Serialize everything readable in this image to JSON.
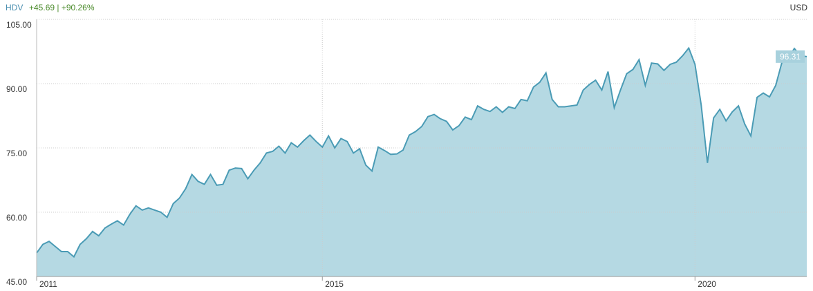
{
  "chart_data": {
    "type": "area",
    "ticker": "HDV",
    "change": "+45.69 | +90.26%",
    "currency": "USD",
    "color": "#4a9bb5",
    "fill": "#b5d9e3",
    "grid": true,
    "ylim": [
      45,
      105
    ],
    "yticks": [
      {
        "value": 45,
        "label": "45.00"
      },
      {
        "value": 60,
        "label": "60.00"
      },
      {
        "value": 75,
        "label": "75.00"
      },
      {
        "value": 90,
        "label": "90.00"
      },
      {
        "value": 105,
        "label": "105.00"
      }
    ],
    "categories": [
      "2011",
      null,
      null,
      null,
      null,
      null,
      null,
      null,
      null,
      null,
      null,
      null,
      null,
      null,
      null,
      null,
      null,
      null,
      null,
      null,
      null,
      null,
      null,
      null,
      null,
      null,
      null,
      null,
      null,
      null,
      null,
      null,
      null,
      null,
      null,
      null,
      null,
      null,
      null,
      null,
      null,
      null,
      null,
      null,
      null,
      null,
      "2015",
      null,
      null,
      null,
      null,
      null,
      null,
      null,
      null,
      null,
      null,
      null,
      null,
      null,
      null,
      null,
      null,
      null,
      null,
      null,
      null,
      null,
      null,
      null,
      null,
      null,
      null,
      null,
      null,
      null,
      null,
      null,
      null,
      null,
      null,
      null,
      null,
      null,
      null,
      null,
      null,
      null,
      null,
      null,
      null,
      null,
      null,
      null,
      null,
      null,
      null,
      null,
      null,
      null,
      null,
      null,
      null,
      null,
      null,
      null,
      "2020",
      null,
      null,
      null,
      null,
      null,
      null,
      null,
      null,
      null,
      null,
      null,
      null,
      null,
      null,
      null,
      null,
      null,
      null
    ],
    "values": [
      50.5,
      52.5,
      53.2,
      52,
      50.8,
      50.8,
      49.6,
      52.5,
      53.8,
      55.5,
      54.5,
      56.3,
      57.2,
      58,
      57,
      59.5,
      61.5,
      60.5,
      61,
      60.5,
      60,
      58.8,
      62,
      63.3,
      65.5,
      68.8,
      67.2,
      66.5,
      68.8,
      66.3,
      66.5,
      69.8,
      70.3,
      70.2,
      67.8,
      69.8,
      71.5,
      73.8,
      74.2,
      75.4,
      73.8,
      76.2,
      75.2,
      76.7,
      78,
      76.5,
      75.2,
      77.8,
      75,
      77.2,
      76.5,
      73.8,
      74.8,
      71,
      69.6,
      75.2,
      74.4,
      73.5,
      73.6,
      74.5,
      78,
      78.8,
      80,
      82.3,
      82.8,
      81.8,
      81.2,
      79.2,
      80.2,
      82.2,
      81.6,
      84.8,
      84,
      83.5,
      84.6,
      83.3,
      84.6,
      84.2,
      86.3,
      86,
      89.2,
      90.3,
      92.5,
      86.3,
      84.6,
      84.6,
      84.8,
      85,
      88.5,
      89.8,
      90.8,
      88.5,
      92.8,
      84.4,
      88.5,
      92.3,
      93.3,
      95.6,
      89.6,
      94.8,
      94.6,
      93.1,
      94.5,
      95,
      96.5,
      98.3,
      94.5,
      85,
      71.5,
      82,
      84,
      81.3,
      83.4,
      84.8,
      80.6,
      77.8,
      86.8,
      87.8,
      86.9,
      89.6,
      95,
      96,
      98.2,
      96.5,
      96.31
    ]
  }
}
